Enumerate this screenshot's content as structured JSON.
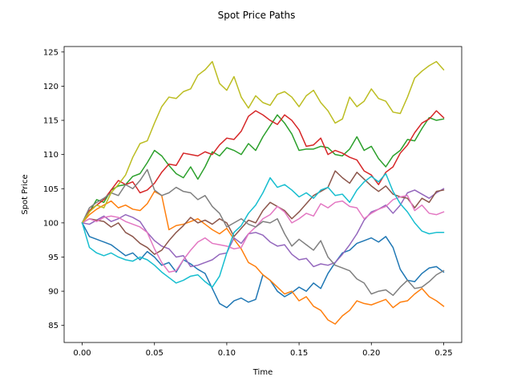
{
  "chart_data": {
    "type": "line",
    "title": "Spot Price Paths",
    "xlabel": "Time",
    "ylabel": "Spot Price",
    "xlim": [
      -0.0125,
      0.2625
    ],
    "ylim": [
      82.5,
      125.8
    ],
    "xticks": [
      0.0,
      0.05,
      0.1,
      0.15,
      0.2,
      0.25
    ],
    "xtick_labels": [
      "0.00",
      "0.05",
      "0.10",
      "0.15",
      "0.20",
      "0.25"
    ],
    "yticks": [
      85,
      90,
      95,
      100,
      105,
      110,
      115,
      120,
      125
    ],
    "ytick_labels": [
      "85",
      "90",
      "95",
      "100",
      "105",
      "110",
      "115",
      "120",
      "125"
    ],
    "grid": false,
    "legend": "none",
    "series": [
      {
        "color": "#1f77b4",
        "x": [
          0,
          0.005,
          0.01,
          0.015,
          0.02,
          0.025,
          0.03,
          0.035,
          0.04,
          0.045,
          0.05,
          0.055,
          0.06,
          0.065,
          0.07,
          0.075,
          0.08,
          0.085,
          0.09,
          0.095,
          0.1,
          0.105,
          0.11,
          0.115,
          0.12,
          0.125,
          0.13,
          0.135,
          0.14,
          0.145,
          0.15,
          0.155,
          0.16,
          0.165,
          0.17,
          0.175,
          0.18,
          0.185,
          0.19,
          0.195,
          0.2,
          0.205,
          0.21,
          0.215,
          0.22,
          0.225,
          0.23,
          0.235,
          0.24,
          0.245,
          0.25
        ],
        "values": [
          100,
          98.0,
          97.6,
          97.2,
          96.8,
          96.0,
          95.2,
          95.6,
          94.6,
          95.8,
          95.0,
          93.8,
          94.2,
          92.8,
          94.6,
          94.0,
          93.2,
          92.6,
          90.4,
          88.2,
          87.6,
          88.6,
          89.0,
          88.4,
          88.8,
          92.4,
          91.6,
          90.0,
          89.2,
          89.8,
          90.6,
          90.0,
          91.2,
          90.4,
          92.6,
          94.2,
          95.6,
          96.0,
          97.0,
          97.4,
          97.8,
          97.2,
          98.0,
          96.4,
          93.2,
          91.6,
          91.4,
          92.6,
          93.4,
          93.6,
          92.8
        ]
      },
      {
        "color": "#ff7f0e",
        "x": [
          0,
          0.005,
          0.01,
          0.015,
          0.02,
          0.025,
          0.03,
          0.035,
          0.04,
          0.045,
          0.05,
          0.055,
          0.06,
          0.065,
          0.07,
          0.075,
          0.08,
          0.085,
          0.09,
          0.095,
          0.1,
          0.105,
          0.11,
          0.115,
          0.12,
          0.125,
          0.13,
          0.135,
          0.14,
          0.145,
          0.15,
          0.155,
          0.16,
          0.165,
          0.17,
          0.175,
          0.18,
          0.185,
          0.19,
          0.195,
          0.2,
          0.205,
          0.21,
          0.215,
          0.22,
          0.225,
          0.23,
          0.235,
          0.24,
          0.245,
          0.25
        ],
        "values": [
          100,
          101.2,
          102.0,
          102.6,
          103.2,
          102.2,
          102.6,
          102.0,
          101.8,
          102.8,
          104.6,
          104.0,
          99.0,
          99.6,
          99.8,
          100.2,
          100.6,
          99.8,
          99.0,
          98.4,
          99.2,
          97.6,
          96.2,
          94.2,
          93.6,
          92.4,
          91.6,
          90.6,
          89.6,
          90.0,
          88.6,
          89.2,
          87.8,
          87.2,
          85.8,
          85.2,
          86.4,
          87.2,
          88.6,
          88.2,
          88.0,
          88.4,
          88.8,
          87.6,
          88.4,
          88.6,
          89.6,
          90.4,
          89.2,
          88.6,
          87.8
        ]
      },
      {
        "color": "#2ca02c",
        "x": [
          0,
          0.005,
          0.01,
          0.015,
          0.02,
          0.025,
          0.03,
          0.035,
          0.04,
          0.045,
          0.05,
          0.055,
          0.06,
          0.065,
          0.07,
          0.075,
          0.08,
          0.085,
          0.09,
          0.095,
          0.1,
          0.105,
          0.11,
          0.115,
          0.12,
          0.125,
          0.13,
          0.135,
          0.14,
          0.145,
          0.15,
          0.155,
          0.16,
          0.165,
          0.17,
          0.175,
          0.18,
          0.185,
          0.19,
          0.195,
          0.2,
          0.205,
          0.21,
          0.215,
          0.22,
          0.225,
          0.23,
          0.235,
          0.24,
          0.245,
          0.25
        ],
        "values": [
          100,
          101.6,
          103.4,
          103.0,
          104.8,
          105.4,
          105.6,
          106.8,
          107.2,
          108.8,
          110.6,
          109.8,
          108.4,
          107.2,
          106.6,
          108.2,
          106.4,
          108.2,
          110.4,
          109.8,
          111.0,
          110.6,
          110.0,
          111.6,
          110.6,
          112.6,
          114.2,
          115.8,
          114.6,
          113.0,
          110.6,
          110.8,
          110.8,
          111.2,
          111.0,
          110.0,
          109.8,
          110.8,
          112.6,
          110.6,
          111.2,
          109.4,
          108.2,
          109.8,
          110.6,
          112.2,
          112.0,
          113.8,
          115.4,
          115.0,
          115.2
        ]
      },
      {
        "color": "#d62728",
        "x": [
          0,
          0.005,
          0.01,
          0.015,
          0.02,
          0.025,
          0.03,
          0.035,
          0.04,
          0.045,
          0.05,
          0.055,
          0.06,
          0.065,
          0.07,
          0.075,
          0.08,
          0.085,
          0.09,
          0.095,
          0.1,
          0.105,
          0.11,
          0.115,
          0.12,
          0.125,
          0.13,
          0.135,
          0.14,
          0.145,
          0.15,
          0.155,
          0.16,
          0.165,
          0.17,
          0.175,
          0.18,
          0.185,
          0.19,
          0.195,
          0.2,
          0.205,
          0.21,
          0.215,
          0.22,
          0.225,
          0.23,
          0.235,
          0.24,
          0.245,
          0.25
        ],
        "values": [
          100,
          101.8,
          102.6,
          103.4,
          104.8,
          106.2,
          105.6,
          106.0,
          104.4,
          104.8,
          105.8,
          107.4,
          108.6,
          108.4,
          110.2,
          110.0,
          109.8,
          110.4,
          110.0,
          111.4,
          112.4,
          112.2,
          113.4,
          115.6,
          116.4,
          115.8,
          115.0,
          114.4,
          115.8,
          115.0,
          113.6,
          111.2,
          111.4,
          112.4,
          110.0,
          110.6,
          110.2,
          109.6,
          109.2,
          107.6,
          107.0,
          105.6,
          107.4,
          108.2,
          110.2,
          111.4,
          113.2,
          114.6,
          115.2,
          116.4,
          115.4
        ]
      },
      {
        "color": "#9467bd",
        "x": [
          0,
          0.005,
          0.01,
          0.015,
          0.02,
          0.025,
          0.03,
          0.035,
          0.04,
          0.045,
          0.05,
          0.055,
          0.06,
          0.065,
          0.07,
          0.075,
          0.08,
          0.085,
          0.09,
          0.095,
          0.1,
          0.105,
          0.11,
          0.115,
          0.12,
          0.125,
          0.13,
          0.135,
          0.14,
          0.145,
          0.15,
          0.155,
          0.16,
          0.165,
          0.17,
          0.175,
          0.18,
          0.185,
          0.19,
          0.195,
          0.2,
          0.205,
          0.21,
          0.215,
          0.22,
          0.225,
          0.23,
          0.235,
          0.24,
          0.245,
          0.25
        ],
        "values": [
          100,
          99.8,
          100.4,
          101.0,
          100.2,
          100.6,
          101.2,
          100.8,
          100.2,
          98.6,
          97.4,
          96.6,
          96.2,
          95.0,
          95.2,
          93.6,
          93.8,
          94.2,
          94.6,
          95.4,
          95.6,
          97.8,
          97.0,
          98.4,
          98.6,
          98.2,
          97.2,
          96.6,
          96.8,
          95.4,
          94.6,
          94.8,
          93.6,
          94.0,
          93.8,
          94.2,
          95.4,
          96.8,
          98.4,
          100.4,
          101.6,
          102.0,
          102.6,
          101.4,
          102.6,
          104.4,
          104.8,
          104.2,
          103.6,
          104.4,
          105.0
        ]
      },
      {
        "color": "#8c564b",
        "x": [
          0,
          0.005,
          0.01,
          0.015,
          0.02,
          0.025,
          0.03,
          0.035,
          0.04,
          0.045,
          0.05,
          0.055,
          0.06,
          0.065,
          0.07,
          0.075,
          0.08,
          0.085,
          0.09,
          0.095,
          0.1,
          0.105,
          0.11,
          0.115,
          0.12,
          0.125,
          0.13,
          0.135,
          0.14,
          0.145,
          0.15,
          0.155,
          0.16,
          0.165,
          0.17,
          0.175,
          0.18,
          0.185,
          0.19,
          0.195,
          0.2,
          0.205,
          0.21,
          0.215,
          0.22,
          0.225,
          0.23,
          0.235,
          0.24,
          0.245,
          0.25
        ],
        "values": [
          100,
          100.6,
          100.4,
          100.2,
          99.4,
          100.0,
          98.6,
          98.0,
          97.0,
          96.4,
          95.4,
          96.0,
          97.4,
          98.6,
          99.6,
          100.8,
          100.0,
          100.4,
          99.8,
          100.6,
          100.0,
          98.0,
          99.2,
          100.4,
          100.0,
          101.8,
          103.0,
          102.4,
          101.8,
          100.6,
          101.6,
          102.8,
          104.0,
          104.6,
          105.2,
          107.6,
          106.6,
          105.8,
          107.4,
          106.4,
          105.4,
          104.6,
          105.4,
          104.2,
          103.8,
          103.6,
          102.2,
          103.6,
          103.0,
          104.6,
          104.8
        ]
      },
      {
        "color": "#e377c2",
        "x": [
          0,
          0.005,
          0.01,
          0.015,
          0.02,
          0.025,
          0.03,
          0.035,
          0.04,
          0.045,
          0.05,
          0.055,
          0.06,
          0.065,
          0.07,
          0.075,
          0.08,
          0.085,
          0.09,
          0.095,
          0.1,
          0.105,
          0.11,
          0.115,
          0.12,
          0.125,
          0.13,
          0.135,
          0.14,
          0.145,
          0.15,
          0.155,
          0.16,
          0.165,
          0.17,
          0.175,
          0.18,
          0.185,
          0.19,
          0.195,
          0.2,
          0.205,
          0.21,
          0.215,
          0.22,
          0.225,
          0.23,
          0.235,
          0.24,
          0.245,
          0.25
        ],
        "values": [
          100,
          100.6,
          100.2,
          100.8,
          101.0,
          100.8,
          100.2,
          99.8,
          99.4,
          98.6,
          96.2,
          94.2,
          92.8,
          93.0,
          94.6,
          96.0,
          97.2,
          97.8,
          97.0,
          96.8,
          96.6,
          96.2,
          96.4,
          98.4,
          99.4,
          100.6,
          101.2,
          102.4,
          101.6,
          100.0,
          100.6,
          101.4,
          101.0,
          102.8,
          102.2,
          103.0,
          103.2,
          102.4,
          102.2,
          100.6,
          101.4,
          102.0,
          102.4,
          103.4,
          103.8,
          104.0,
          101.8,
          102.6,
          101.4,
          101.2,
          101.6
        ]
      },
      {
        "color": "#7f7f7f",
        "x": [
          0,
          0.005,
          0.01,
          0.015,
          0.02,
          0.025,
          0.03,
          0.035,
          0.04,
          0.045,
          0.05,
          0.055,
          0.06,
          0.065,
          0.07,
          0.075,
          0.08,
          0.085,
          0.09,
          0.095,
          0.1,
          0.105,
          0.11,
          0.115,
          0.12,
          0.125,
          0.13,
          0.135,
          0.14,
          0.145,
          0.15,
          0.155,
          0.16,
          0.165,
          0.17,
          0.175,
          0.18,
          0.185,
          0.19,
          0.195,
          0.2,
          0.205,
          0.21,
          0.215,
          0.22,
          0.225,
          0.23,
          0.235,
          0.24,
          0.245,
          0.25
        ],
        "values": [
          100,
          102.2,
          103.0,
          103.6,
          104.4,
          104.0,
          105.6,
          105.0,
          106.2,
          107.8,
          104.8,
          104.0,
          104.4,
          105.2,
          104.6,
          104.4,
          103.4,
          104.0,
          102.4,
          101.4,
          99.4,
          100.0,
          100.6,
          99.8,
          99.4,
          100.2,
          100.0,
          100.6,
          98.4,
          96.6,
          97.6,
          96.8,
          96.0,
          97.4,
          95.0,
          93.8,
          93.4,
          93.0,
          91.8,
          91.2,
          89.6,
          90.0,
          90.2,
          89.4,
          90.6,
          91.6,
          90.4,
          90.6,
          91.4,
          92.4,
          93.0
        ]
      },
      {
        "color": "#bcbd22",
        "x": [
          0,
          0.005,
          0.01,
          0.015,
          0.02,
          0.025,
          0.03,
          0.035,
          0.04,
          0.045,
          0.05,
          0.055,
          0.06,
          0.065,
          0.07,
          0.075,
          0.08,
          0.085,
          0.09,
          0.095,
          0.1,
          0.105,
          0.11,
          0.115,
          0.12,
          0.125,
          0.13,
          0.135,
          0.14,
          0.145,
          0.15,
          0.155,
          0.16,
          0.165,
          0.17,
          0.175,
          0.18,
          0.185,
          0.19,
          0.195,
          0.2,
          0.205,
          0.21,
          0.215,
          0.22,
          0.225,
          0.23,
          0.235,
          0.24,
          0.245,
          0.25
        ],
        "values": [
          100,
          101.6,
          102.6,
          102.2,
          104.4,
          105.6,
          107.0,
          109.6,
          111.6,
          112.0,
          114.6,
          117.0,
          118.4,
          118.2,
          119.2,
          119.6,
          121.6,
          122.4,
          123.6,
          120.4,
          119.4,
          121.4,
          118.4,
          116.8,
          118.6,
          117.6,
          117.2,
          118.8,
          119.2,
          118.4,
          117.0,
          118.6,
          119.4,
          117.6,
          116.4,
          114.6,
          115.2,
          118.4,
          117.0,
          117.8,
          119.6,
          118.2,
          117.8,
          116.2,
          116.0,
          118.4,
          121.2,
          122.2,
          123.0,
          123.6,
          122.4
        ]
      },
      {
        "color": "#17becf",
        "x": [
          0,
          0.005,
          0.01,
          0.015,
          0.02,
          0.025,
          0.03,
          0.035,
          0.04,
          0.045,
          0.05,
          0.055,
          0.06,
          0.065,
          0.07,
          0.075,
          0.08,
          0.085,
          0.09,
          0.095,
          0.1,
          0.105,
          0.11,
          0.115,
          0.12,
          0.125,
          0.13,
          0.135,
          0.14,
          0.145,
          0.15,
          0.155,
          0.16,
          0.165,
          0.17,
          0.175,
          0.18,
          0.185,
          0.19,
          0.195,
          0.2,
          0.205,
          0.21,
          0.215,
          0.22,
          0.225,
          0.23,
          0.235,
          0.24,
          0.245,
          0.25
        ],
        "values": [
          100,
          96.4,
          95.6,
          95.2,
          95.6,
          95.0,
          94.6,
          94.4,
          95.0,
          94.6,
          93.8,
          92.8,
          92.0,
          91.2,
          91.6,
          92.2,
          92.4,
          91.4,
          90.6,
          92.2,
          95.6,
          98.6,
          99.6,
          101.4,
          102.6,
          104.4,
          106.6,
          105.2,
          105.6,
          104.8,
          103.8,
          104.4,
          103.6,
          104.8,
          105.2,
          104.0,
          104.2,
          103.0,
          104.8,
          106.0,
          106.8,
          106.0,
          107.2,
          104.6,
          102.8,
          101.6,
          100.0,
          98.8,
          98.4,
          98.6,
          98.6
        ]
      }
    ]
  }
}
